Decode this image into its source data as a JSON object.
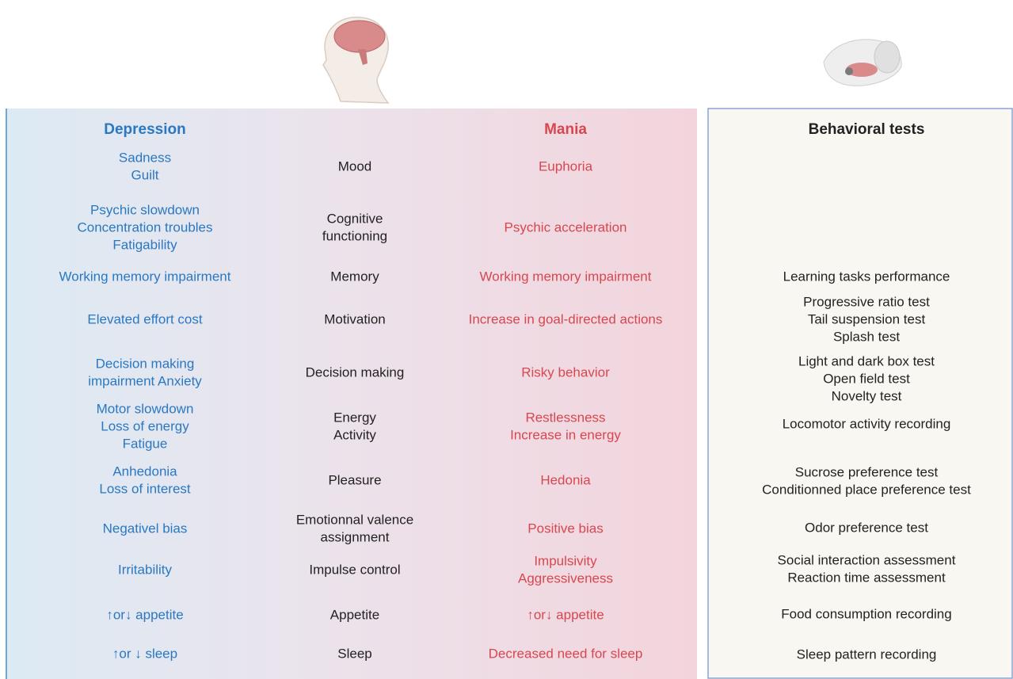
{
  "header": {
    "depression": "Depression",
    "mania": "Mania",
    "tests": "Behavioral tests"
  },
  "rows": [
    {
      "depression": [
        "Sadness",
        "Guilt"
      ],
      "domain": [
        "Mood"
      ],
      "mania": [
        "Euphoria"
      ]
    },
    {
      "depression": [
        "Psychic slowdown",
        "Concentration troubles",
        "Fatigability"
      ],
      "domain": [
        "Cognitive",
        "functioning"
      ],
      "mania": [
        "Psychic acceleration"
      ]
    },
    {
      "depression": [
        "Working memory impairment"
      ],
      "domain": [
        "Memory"
      ],
      "mania": [
        "Working memory impairment"
      ]
    },
    {
      "depression": [
        "Elevated effort cost"
      ],
      "domain": [
        "Motivation"
      ],
      "mania": [
        "Increase in goal-directed actions"
      ]
    },
    {
      "depression": [
        "Decision making",
        "impairment Anxiety"
      ],
      "domain": [
        "Decision making"
      ],
      "mania": [
        "Risky behavior"
      ]
    },
    {
      "depression": [
        "Motor slowdown",
        "Loss of energy",
        "Fatigue"
      ],
      "domain": [
        "Energy",
        "Activity"
      ],
      "mania": [
        "Restlessness",
        "Increase in energy"
      ]
    },
    {
      "depression": [
        "Anhedonia",
        "Loss of interest"
      ],
      "domain": [
        "Pleasure"
      ],
      "mania": [
        "Hedonia"
      ]
    },
    {
      "depression": [
        "Negativel bias"
      ],
      "domain": [
        "Emotionnal valence",
        "assignment"
      ],
      "mania": [
        "Positive bias"
      ]
    },
    {
      "depression": [
        "Irritability"
      ],
      "domain": [
        "Impulse control"
      ],
      "mania": [
        "Impulsivity",
        "Aggressiveness"
      ]
    },
    {
      "depression": [
        "↑or↓ appetite"
      ],
      "domain": [
        "Appetite"
      ],
      "mania": [
        "↑or↓ appetite"
      ]
    },
    {
      "depression": [
        "↑or ↓ sleep"
      ],
      "domain": [
        "Sleep"
      ],
      "mania": [
        "Decreased need for sleep"
      ]
    }
  ],
  "tests": [
    [
      "Learning tasks performance"
    ],
    [
      "Progressive ratio test",
      "Tail suspension test",
      "Splash test"
    ],
    [
      "Light and dark box test",
      "Open field test",
      "Novelty test"
    ],
    [
      "Locomotor activity recording"
    ],
    [
      "Sucrose preference test",
      "Conditionned place preference test"
    ],
    [
      "Odor preference test"
    ],
    [
      "Social interaction assessment",
      "Reaction time assessment"
    ],
    [
      "Food consumption recording"
    ],
    [
      "Sleep pattern recording"
    ]
  ]
}
